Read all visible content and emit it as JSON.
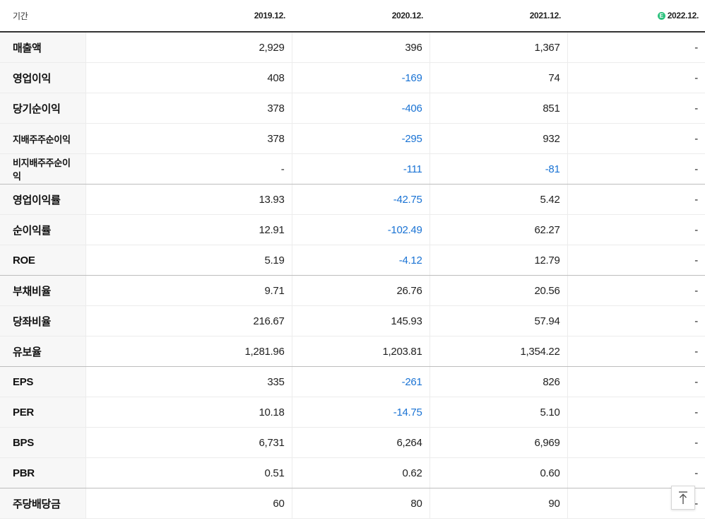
{
  "header": {
    "label": "기간",
    "periods": [
      "2019.12.",
      "2020.12.",
      "2021.12.",
      "2022.12."
    ],
    "estimate_badge": "E"
  },
  "rows": [
    {
      "label": "매출액",
      "values": [
        "2,929",
        "396",
        "1,367",
        "-"
      ]
    },
    {
      "label": "영업이익",
      "values": [
        "408",
        "-169",
        "74",
        "-"
      ]
    },
    {
      "label": "당기순이익",
      "values": [
        "378",
        "-406",
        "851",
        "-"
      ]
    },
    {
      "label": "지배주주순이익",
      "values": [
        "378",
        "-295",
        "932",
        "-"
      ]
    },
    {
      "label": "비지배주주순이익",
      "values": [
        "-",
        "-111",
        "-81",
        "-"
      ]
    },
    {
      "label": "영업이익률",
      "values": [
        "13.93",
        "-42.75",
        "5.42",
        "-"
      ]
    },
    {
      "label": "순이익률",
      "values": [
        "12.91",
        "-102.49",
        "62.27",
        "-"
      ]
    },
    {
      "label": "ROE",
      "values": [
        "5.19",
        "-4.12",
        "12.79",
        "-"
      ]
    },
    {
      "label": "부채비율",
      "values": [
        "9.71",
        "26.76",
        "20.56",
        "-"
      ]
    },
    {
      "label": "당좌비율",
      "values": [
        "216.67",
        "145.93",
        "57.94",
        "-"
      ]
    },
    {
      "label": "유보율",
      "values": [
        "1,281.96",
        "1,203.81",
        "1,354.22",
        "-"
      ]
    },
    {
      "label": "EPS",
      "values": [
        "335",
        "-261",
        "826",
        "-"
      ]
    },
    {
      "label": "PER",
      "values": [
        "10.18",
        "-14.75",
        "5.10",
        "-"
      ]
    },
    {
      "label": "BPS",
      "values": [
        "6,731",
        "6,264",
        "6,969",
        "-"
      ]
    },
    {
      "label": "PBR",
      "values": [
        "0.51",
        "0.62",
        "0.60",
        "-"
      ]
    },
    {
      "label": "주당배당금",
      "values": [
        "60",
        "80",
        "90",
        "-"
      ]
    }
  ],
  "colors": {
    "negative": "#1a73d4",
    "estimate_badge": "#2ec27e",
    "label_bg": "#f7f7f7"
  },
  "scroll_top_icon": "arrow-up-to-line-icon"
}
